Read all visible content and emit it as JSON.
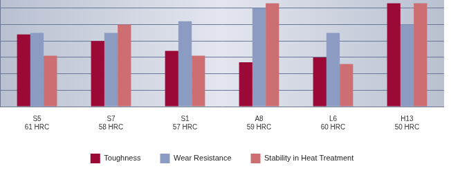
{
  "chart_data": {
    "type": "bar",
    "categories": [
      [
        "S5",
        "61 HRC"
      ],
      [
        "S7",
        "58 HRC"
      ],
      [
        "S1",
        "57 HRC"
      ],
      [
        "A8",
        "59 HRC"
      ],
      [
        "L6",
        "60 HRC"
      ],
      [
        "H13",
        "50 HRC"
      ]
    ],
    "series": [
      {
        "name": "Toughness",
        "color": "#9b0a36",
        "values": [
          4.4,
          4.0,
          3.4,
          2.7,
          3.0,
          6.3
        ]
      },
      {
        "name": "Wear Resistance",
        "color": "#8b9bc2",
        "values": [
          4.5,
          4.5,
          5.2,
          6.0,
          4.5,
          5.0
        ]
      },
      {
        "name": "Stability in Heat Treatment",
        "color": "#cc6e72",
        "values": [
          3.1,
          5.0,
          3.1,
          6.3,
          2.6,
          6.3
        ]
      }
    ],
    "ylim": [
      0,
      6.5
    ],
    "yticks": [
      0,
      1,
      2,
      3,
      4,
      5,
      6
    ],
    "grid": true,
    "legend": "bottom",
    "tick_labels": "x"
  }
}
